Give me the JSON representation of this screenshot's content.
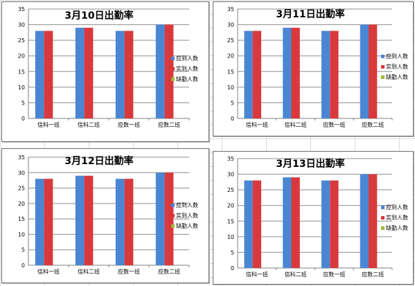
{
  "colors": {
    "应到人数": "#4a86d4",
    "实到人数": "#d9393c",
    "缺勤人数": "#9bbb37"
  },
  "chart_data": [
    {
      "type": "bar",
      "title": "3月10日出勤率",
      "categories": [
        "信科一班",
        "信科二班",
        "应数一班",
        "应数二班"
      ],
      "series": [
        {
          "name": "应到人数",
          "values": [
            28,
            29,
            28,
            30
          ]
        },
        {
          "name": "实到人数",
          "values": [
            28,
            29,
            28,
            30
          ]
        },
        {
          "name": "缺勤人数",
          "values": [
            0,
            0,
            0,
            0
          ]
        }
      ],
      "ylim": [
        0,
        35
      ],
      "yticks": [
        0,
        5,
        10,
        15,
        20,
        25,
        30,
        35
      ],
      "grid": true,
      "legend": "right"
    },
    {
      "type": "bar",
      "title": "3月11日出勤率",
      "categories": [
        "信科一班",
        "信科二班",
        "应数一班",
        "应数二班"
      ],
      "series": [
        {
          "name": "应到人数",
          "values": [
            28,
            29,
            28,
            30
          ]
        },
        {
          "name": "实到人数",
          "values": [
            28,
            29,
            28,
            30
          ]
        },
        {
          "name": "缺勤人数",
          "values": [
            0,
            0,
            0,
            0
          ]
        }
      ],
      "ylim": [
        0,
        35
      ],
      "yticks": [
        0,
        5,
        10,
        15,
        20,
        25,
        30,
        35
      ],
      "grid": true,
      "legend": "right"
    },
    {
      "type": "bar",
      "title": "3月12日出勤率",
      "categories": [
        "信科一班",
        "信科二班",
        "应数一班",
        "应数二班"
      ],
      "series": [
        {
          "name": "应到人数",
          "values": [
            28,
            29,
            28,
            30
          ]
        },
        {
          "name": "实到人数",
          "values": [
            28,
            29,
            28,
            30
          ]
        },
        {
          "name": "缺勤人数",
          "values": [
            0,
            0,
            0,
            0
          ]
        }
      ],
      "ylim": [
        0,
        35
      ],
      "yticks": [
        0,
        5,
        10,
        15,
        20,
        25,
        30,
        35
      ],
      "grid": true,
      "legend": "right"
    },
    {
      "type": "bar",
      "title": "3月13日出勤率",
      "categories": [
        "信科一班",
        "信科二班",
        "应数一班",
        "应数二班"
      ],
      "series": [
        {
          "name": "应到人数",
          "values": [
            28,
            29,
            28,
            30
          ]
        },
        {
          "name": "实到人数",
          "values": [
            28,
            29,
            28,
            30
          ]
        },
        {
          "name": "缺勤人数",
          "values": [
            0,
            0,
            0,
            0
          ]
        }
      ],
      "ylim": [
        0,
        35
      ],
      "yticks": [
        0,
        5,
        10,
        15,
        20,
        25,
        30,
        35
      ],
      "grid": true,
      "legend": "right"
    }
  ]
}
